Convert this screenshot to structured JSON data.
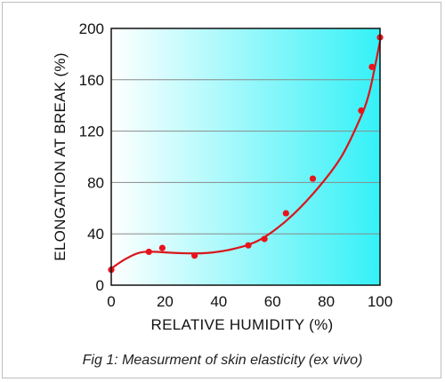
{
  "caption": "Fig 1: Measurment of skin elasticity (ex vivo)",
  "chart_data": {
    "type": "scatter",
    "title": "",
    "xlabel": "RELATIVE HUMIDITY  (%)",
    "ylabel": "ELONGATION AT BREAK (%)",
    "xlim": [
      0,
      100
    ],
    "ylim": [
      0,
      200
    ],
    "xticks": [
      0,
      20,
      40,
      60,
      80,
      100
    ],
    "yticks": [
      0,
      40,
      80,
      120,
      160,
      200
    ],
    "grid": "horizontal",
    "background": "gradient white to cyan (left to right)",
    "series": [
      {
        "type": "scatter",
        "color": "#e8141b",
        "points": [
          {
            "x": 0,
            "y": 12
          },
          {
            "x": 14,
            "y": 26
          },
          {
            "x": 19,
            "y": 29
          },
          {
            "x": 31,
            "y": 23
          },
          {
            "x": 51,
            "y": 31
          },
          {
            "x": 57,
            "y": 36
          },
          {
            "x": 65,
            "y": 56
          },
          {
            "x": 75,
            "y": 83
          },
          {
            "x": 93,
            "y": 136
          },
          {
            "x": 97,
            "y": 170
          },
          {
            "x": 100,
            "y": 193
          }
        ]
      },
      {
        "type": "line",
        "color": "#d9161c",
        "smooth": true,
        "points": [
          {
            "x": 0,
            "y": 13
          },
          {
            "x": 5,
            "y": 20
          },
          {
            "x": 10,
            "y": 25
          },
          {
            "x": 15,
            "y": 26
          },
          {
            "x": 25,
            "y": 25
          },
          {
            "x": 35,
            "y": 25
          },
          {
            "x": 45,
            "y": 28
          },
          {
            "x": 55,
            "y": 35
          },
          {
            "x": 65,
            "y": 50
          },
          {
            "x": 75,
            "y": 71
          },
          {
            "x": 85,
            "y": 98
          },
          {
            "x": 92,
            "y": 127
          },
          {
            "x": 96,
            "y": 150
          },
          {
            "x": 100,
            "y": 190
          }
        ]
      }
    ]
  }
}
